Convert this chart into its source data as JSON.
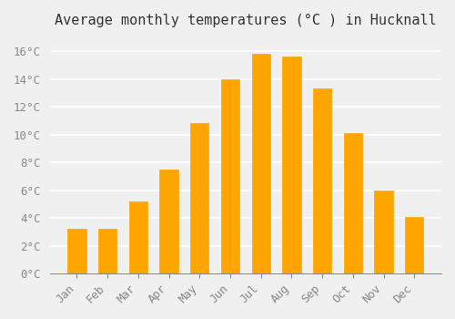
{
  "title": "Average monthly temperatures (°C ) in Hucknall",
  "months": [
    "Jan",
    "Feb",
    "Mar",
    "Apr",
    "May",
    "Jun",
    "Jul",
    "Aug",
    "Sep",
    "Oct",
    "Nov",
    "Dec"
  ],
  "values": [
    3.2,
    3.2,
    5.2,
    7.5,
    10.8,
    14.0,
    15.8,
    15.6,
    13.3,
    10.1,
    6.0,
    4.1
  ],
  "bar_color": "#FFA500",
  "bar_edge_color": "#CC8800",
  "background_color": "#F0F0F0",
  "grid_color": "#FFFFFF",
  "ylim": [
    0,
    17
  ],
  "yticks": [
    0,
    2,
    4,
    6,
    8,
    10,
    12,
    14,
    16
  ],
  "ytick_labels": [
    "0°C",
    "2°C",
    "4°C",
    "6°C",
    "8°C",
    "10°C",
    "12°C",
    "14°C",
    "16°C"
  ],
  "title_fontsize": 11,
  "tick_fontsize": 9,
  "font_family": "monospace"
}
